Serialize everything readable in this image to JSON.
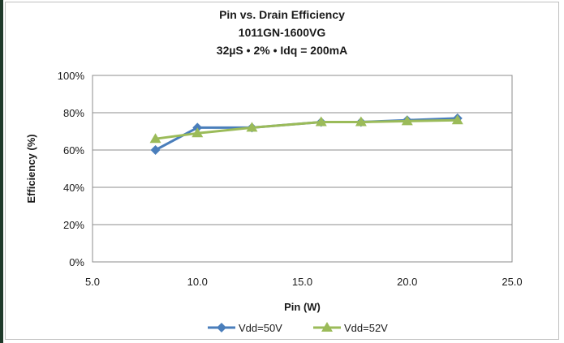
{
  "chart_data": {
    "type": "line",
    "title": "Pin vs. Drain Efficiency",
    "subtitle_1": "1011GN-1600VG",
    "subtitle_2": "32µS • 2% • Idq = 200mA",
    "xlabel": "Pin (W)",
    "ylabel": "Efficiency  (%)",
    "xlim": [
      5.0,
      25.0
    ],
    "ylim": [
      0,
      100
    ],
    "x_ticks": [
      "5.0",
      "10.0",
      "15.0",
      "20.0",
      "25.0"
    ],
    "y_ticks": [
      "0%",
      "20%",
      "40%",
      "60%",
      "80%",
      "100%"
    ],
    "grid": "horizontal",
    "legend_position": "bottom",
    "series": [
      {
        "name": "Vdd=50V",
        "color": "#4a7ebb",
        "marker": "diamond",
        "x": [
          8.0,
          10.0,
          12.6,
          15.9,
          17.8,
          20.0,
          22.4
        ],
        "y": [
          60,
          72,
          72,
          75,
          75,
          76,
          77
        ]
      },
      {
        "name": "Vdd=52V",
        "color": "#9bbb59",
        "marker": "triangle",
        "x": [
          8.0,
          10.0,
          12.6,
          15.9,
          17.8,
          20.0,
          22.4
        ],
        "y": [
          66,
          69,
          72,
          75,
          75,
          75.5,
          76
        ]
      }
    ]
  }
}
